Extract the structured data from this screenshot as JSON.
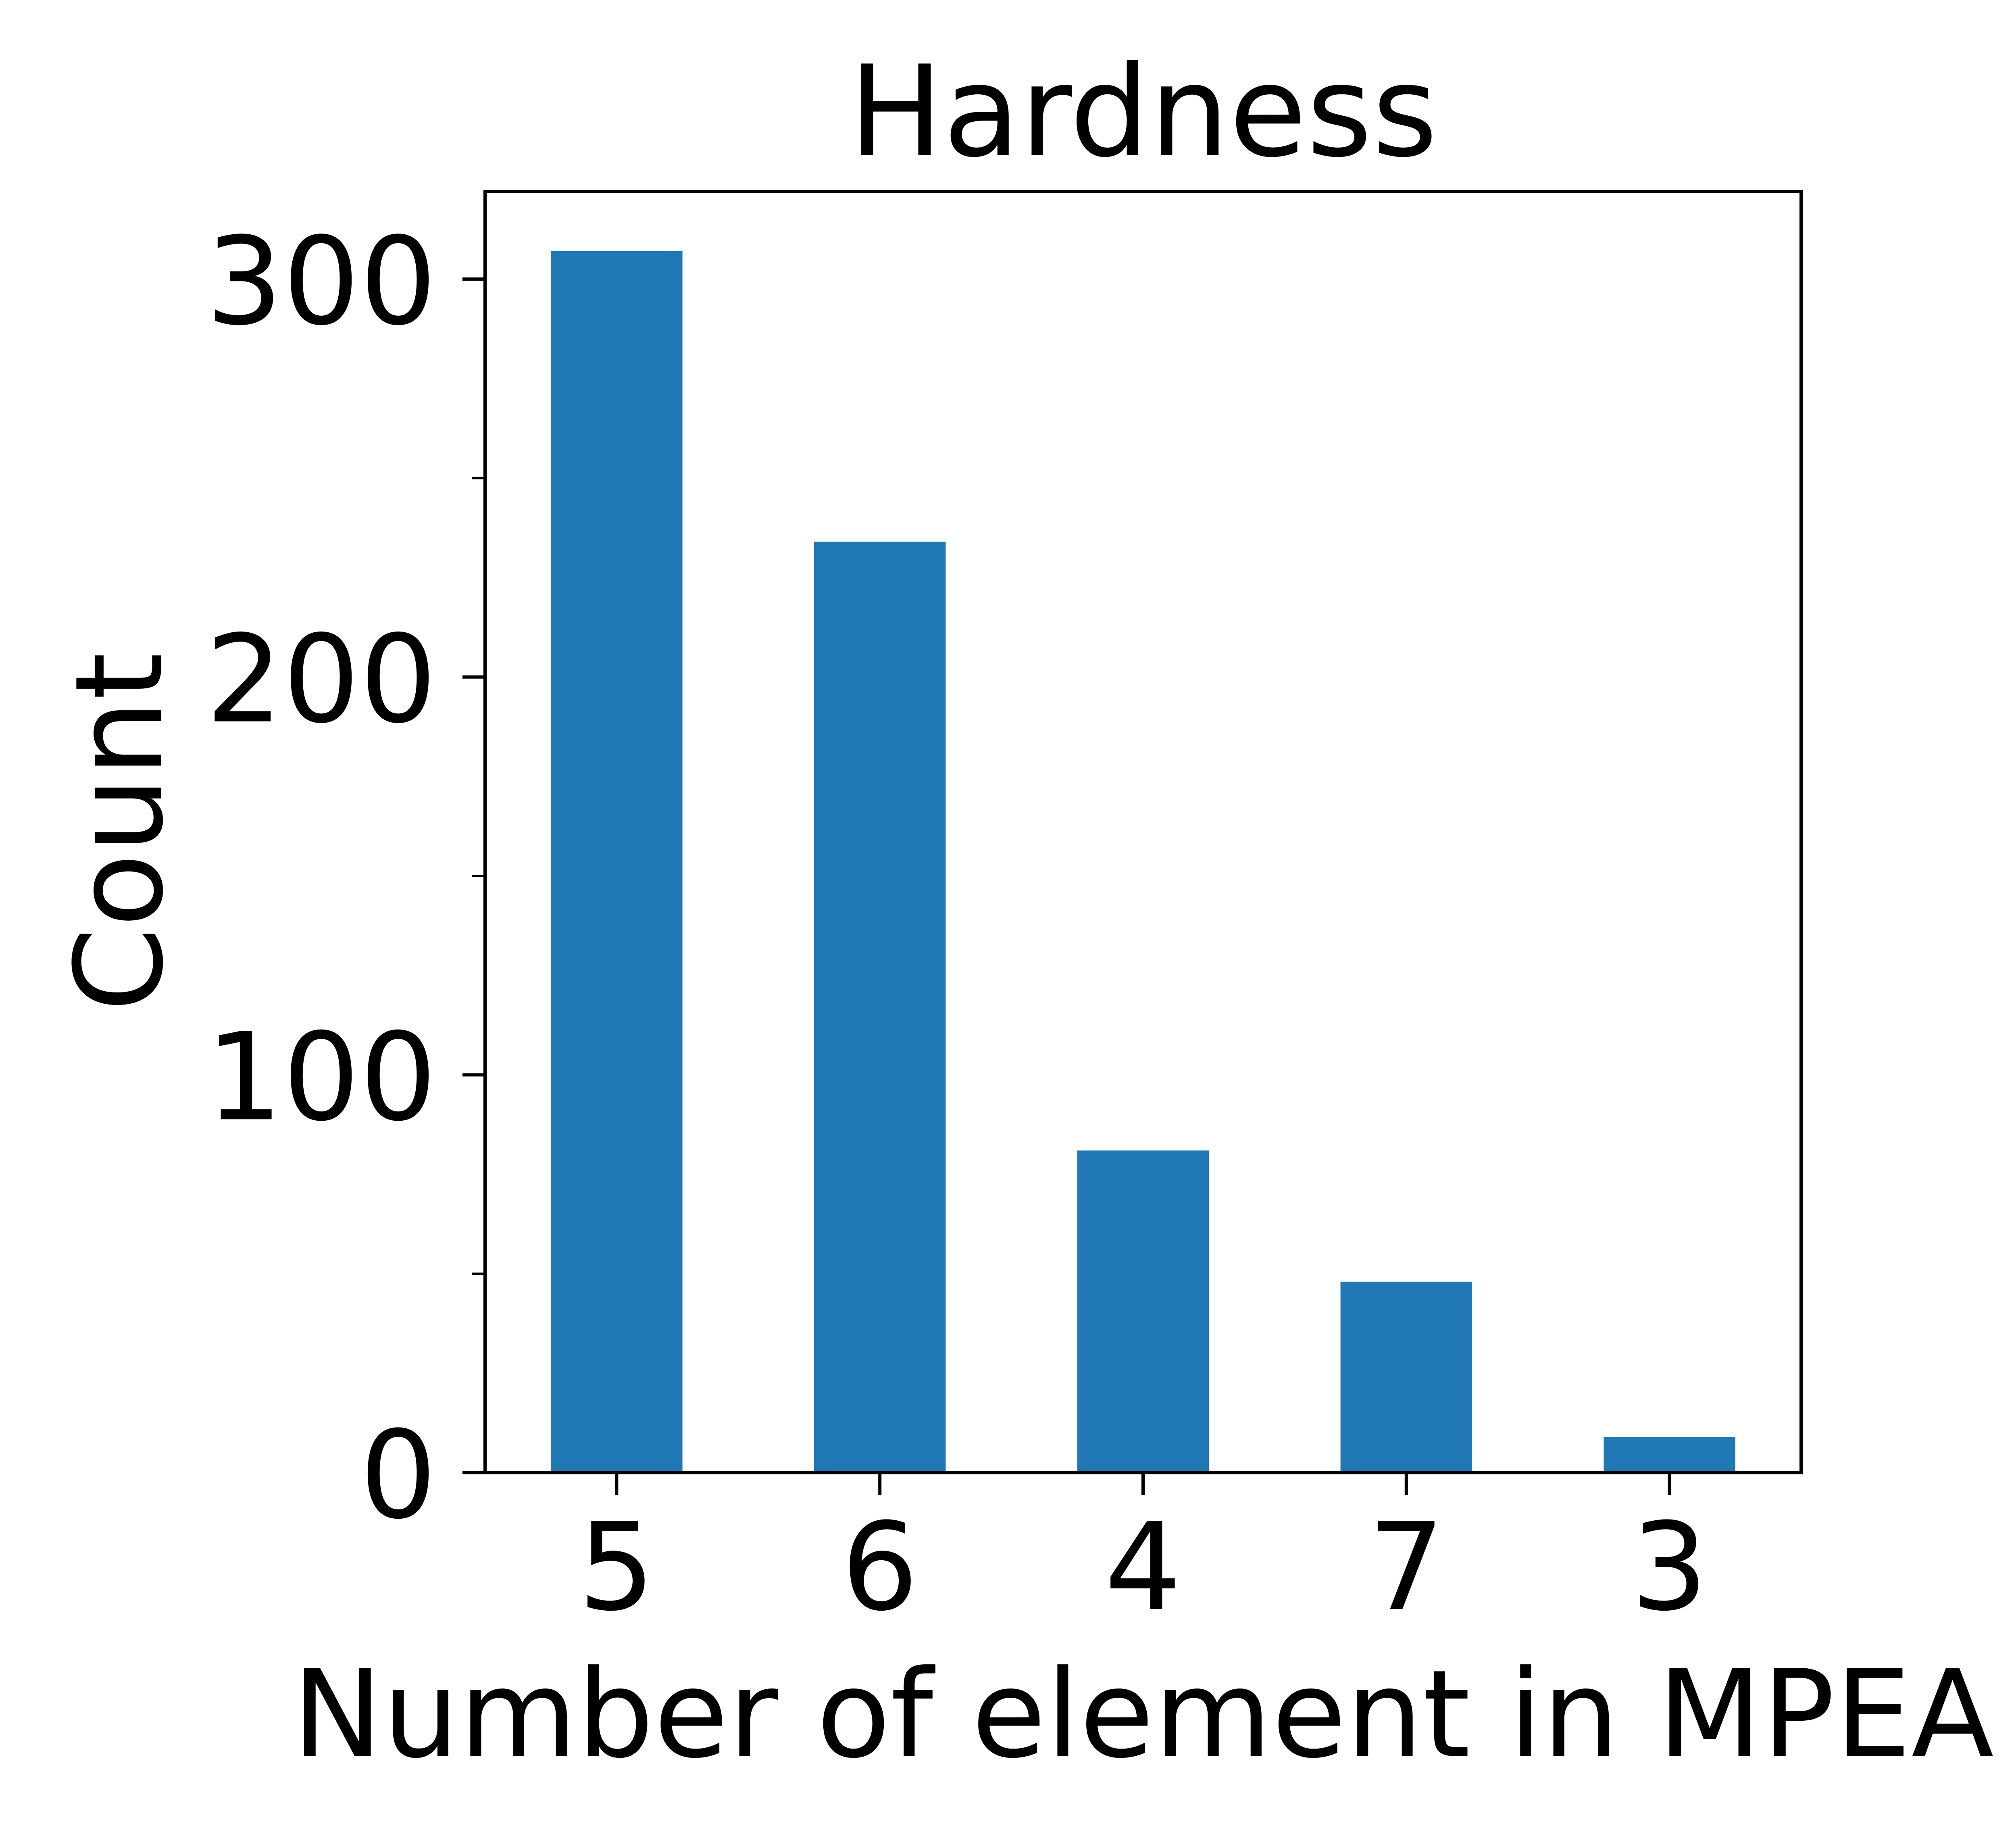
{
  "chart_data": {
    "type": "bar",
    "title": "Hardness",
    "xlabel": "Number of element in MPEA",
    "ylabel": "Count",
    "categories": [
      "5",
      "6",
      "4",
      "7",
      "3"
    ],
    "values": [
      307,
      234,
      81,
      48,
      9
    ],
    "ylim": [
      0,
      322
    ],
    "yticks": [
      0,
      100,
      200,
      300
    ],
    "yminor_ticks": [
      50,
      150,
      250
    ],
    "bar_color": "#1f77b4",
    "grid": false,
    "legend": "none"
  }
}
